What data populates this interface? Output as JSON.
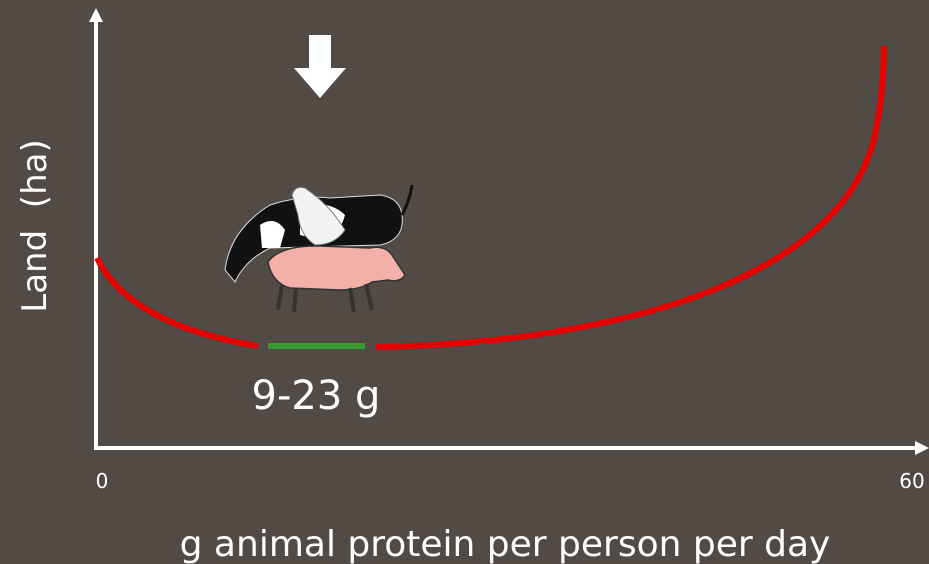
{
  "y_axis_label": "Land  (ha)",
  "x_axis_label": "g animal protein per person per day",
  "x_ticks": [
    0,
    60
  ],
  "optimum_label": "9-23 g"
}
